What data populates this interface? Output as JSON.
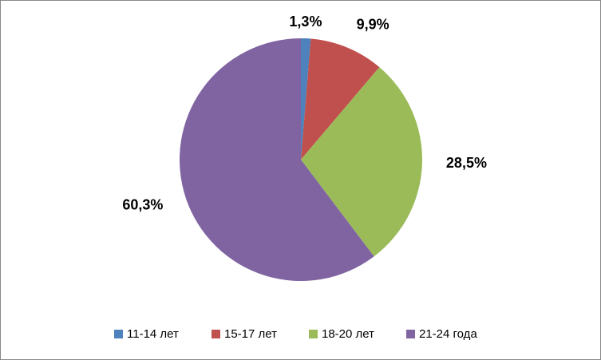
{
  "chart_data": {
    "type": "pie",
    "categories": [
      "11-14 лет",
      "15-17 лет",
      "18-20 лет",
      "21-24 года"
    ],
    "values": [
      1.3,
      9.9,
      28.5,
      60.3
    ],
    "value_labels": [
      "1,3%",
      "9,9%",
      "28,5%",
      "60,3%"
    ],
    "colors": [
      "#4f81bd",
      "#c0504d",
      "#9bbb59",
      "#8064a2"
    ],
    "legend": "bottom"
  }
}
